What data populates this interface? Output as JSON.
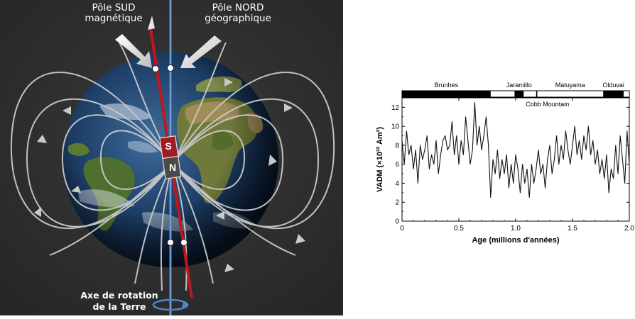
{
  "diagram": {
    "label_south_magnetic": [
      "Pôle SUD",
      "magnétique"
    ],
    "label_north_geographic": [
      "Pôle NORD",
      "géographique"
    ],
    "label_axis": [
      "Axe de rotation",
      "de la Terre"
    ],
    "magnet_s": "S",
    "magnet_n": "N",
    "colors": {
      "background": "#2e2e2e",
      "rotation_axis": "#4f86c6",
      "magnetic_axis": "#c0171c",
      "field_lines": "#c9c9c9"
    }
  },
  "chart_data": {
    "type": "line",
    "top_bar_labels": [
      "Brunhes",
      "Jaramillo",
      "Matuyama",
      "Olduvai"
    ],
    "chrons": [
      {
        "start": 0.0,
        "end": 0.78,
        "polarity": "normal"
      },
      {
        "start": 0.78,
        "end": 0.99,
        "polarity": "reversed"
      },
      {
        "start": 0.99,
        "end": 1.07,
        "polarity": "normal"
      },
      {
        "start": 1.07,
        "end": 1.18,
        "polarity": "reversed"
      },
      {
        "start": 1.18,
        "end": 1.19,
        "polarity": "normal"
      },
      {
        "start": 1.19,
        "end": 1.77,
        "polarity": "reversed"
      },
      {
        "start": 1.77,
        "end": 1.95,
        "polarity": "normal"
      },
      {
        "start": 1.95,
        "end": 2.0,
        "polarity": "reversed"
      }
    ],
    "annotation": "Cobb Mountain",
    "xlabel": "Age (millions d'années)",
    "ylabel": "VADM (×10²² Am²)",
    "xlim": [
      0,
      2.0
    ],
    "ylim": [
      0,
      13
    ],
    "xticks": [
      "0",
      "0.5",
      "1.0",
      "1.5",
      "2.0"
    ],
    "yticks": [
      "0",
      "2",
      "4",
      "6",
      "8",
      "10",
      "12"
    ],
    "series": [
      {
        "x": [
          0.0,
          0.02,
          0.04,
          0.06,
          0.08,
          0.1,
          0.12,
          0.14,
          0.16,
          0.18,
          0.2,
          0.22,
          0.24,
          0.26,
          0.28,
          0.3,
          0.32,
          0.34,
          0.36,
          0.38,
          0.4,
          0.42,
          0.44,
          0.46,
          0.48,
          0.5,
          0.52,
          0.54,
          0.56,
          0.58,
          0.6,
          0.62,
          0.64,
          0.66,
          0.68,
          0.7,
          0.72,
          0.74,
          0.76,
          0.78,
          0.8,
          0.82,
          0.84,
          0.86,
          0.88,
          0.9,
          0.92,
          0.94,
          0.96,
          0.98,
          1.0,
          1.02,
          1.04,
          1.06,
          1.08,
          1.1,
          1.12,
          1.14,
          1.16,
          1.18,
          1.2,
          1.22,
          1.24,
          1.26,
          1.28,
          1.3,
          1.32,
          1.34,
          1.36,
          1.38,
          1.4,
          1.42,
          1.44,
          1.46,
          1.48,
          1.5,
          1.52,
          1.54,
          1.56,
          1.58,
          1.6,
          1.62,
          1.64,
          1.66,
          1.68,
          1.7,
          1.72,
          1.74,
          1.76,
          1.78,
          1.8,
          1.82,
          1.84,
          1.86,
          1.88,
          1.9,
          1.92,
          1.94,
          1.96,
          1.98,
          2.0
        ],
        "y": [
          8.5,
          6.0,
          9.5,
          7.0,
          8.0,
          5.5,
          7.5,
          4.0,
          8.0,
          6.5,
          7.5,
          9.0,
          5.5,
          7.0,
          6.0,
          8.5,
          5.0,
          7.0,
          8.5,
          9.0,
          7.5,
          8.0,
          10.5,
          7.0,
          9.0,
          6.0,
          8.5,
          7.0,
          11.0,
          8.5,
          6.0,
          7.5,
          12.5,
          8.0,
          10.0,
          7.5,
          9.0,
          11.0,
          8.0,
          2.5,
          6.5,
          5.0,
          7.5,
          4.5,
          6.5,
          5.0,
          7.0,
          3.5,
          6.0,
          4.0,
          7.0,
          5.5,
          3.0,
          6.0,
          4.0,
          5.5,
          2.5,
          6.0,
          4.0,
          5.5,
          7.5,
          5.0,
          6.0,
          3.5,
          6.5,
          8.0,
          5.0,
          6.5,
          9.0,
          6.0,
          8.0,
          6.5,
          9.5,
          7.5,
          6.0,
          8.0,
          10.0,
          7.0,
          8.5,
          6.5,
          9.0,
          7.5,
          10.0,
          7.0,
          8.5,
          6.0,
          7.5,
          5.0,
          6.5,
          4.5,
          7.0,
          3.0,
          5.5,
          4.5,
          8.0,
          5.0,
          9.0,
          6.5,
          4.0,
          9.5,
          6.0
        ]
      }
    ]
  }
}
